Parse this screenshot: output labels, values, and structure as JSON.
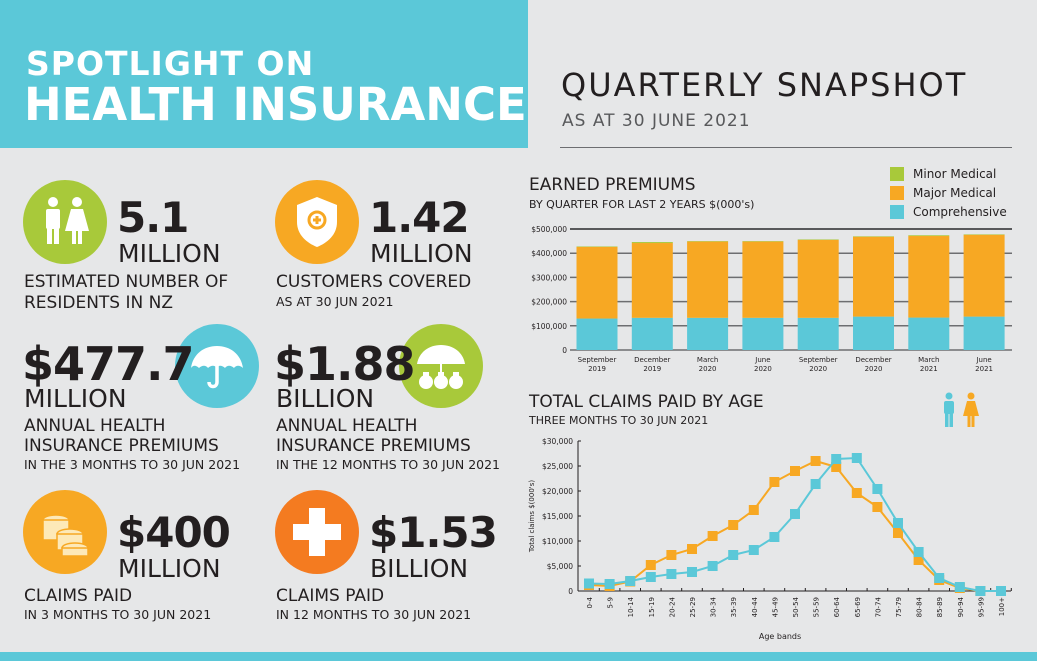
{
  "header": {
    "line1": "SPOTLIGHT ON",
    "line2": "HEALTH INSURANCE",
    "snapshot_title": "QUARTERLY SNAPSHOT",
    "snapshot_date": "AS AT 30 JUNE 2021"
  },
  "colors": {
    "teal": "#5bc8d8",
    "green": "#a8c93a",
    "orange": "#f7a823",
    "dark_orange": "#f47b20",
    "text": "#231f20",
    "background": "#e6e7e8"
  },
  "stats": [
    {
      "icon": "people-icon",
      "value": "5.1",
      "unit": "MILLION",
      "label1": "ESTIMATED NUMBER OF",
      "label2": "RESIDENTS IN NZ"
    },
    {
      "icon": "shield-plus-icon",
      "value": "1.42",
      "unit": "MILLION",
      "label1": "CUSTOMERS COVERED",
      "note": "AS AT 30 JUN 2021"
    },
    {
      "icon": "umbrella-icon",
      "value": "$477.7",
      "unit": "MILLION",
      "label1": "ANNUAL HEALTH",
      "label2": "INSURANCE PREMIUMS",
      "note": "IN THE 3 MONTHS TO 30 JUN 2021"
    },
    {
      "icon": "umbrella-money-bags-icon",
      "value": "$1.88",
      "unit": "BILLION",
      "label1": "ANNUAL HEALTH",
      "label2": "INSURANCE PREMIUMS",
      "note": "IN THE 12 MONTHS TO 30 JUN 2021"
    },
    {
      "icon": "coins-icon",
      "value": "$400",
      "unit": "MILLION",
      "label1": "CLAIMS PAID",
      "note": "IN 3 MONTHS TO 30 JUN 2021"
    },
    {
      "icon": "medical-cross-icon",
      "value": "$1.53",
      "unit": "BILLION",
      "label1": "CLAIMS PAID",
      "note": "IN 12 MONTHS TO 30 JUN 2021"
    }
  ],
  "chart_data": [
    {
      "type": "bar",
      "stacked": true,
      "title": "EARNED PREMIUMS",
      "subtitle": "BY QUARTER FOR LAST 2 YEARS $(000's)",
      "categories": [
        [
          "September",
          "2019"
        ],
        [
          "December",
          "2019"
        ],
        [
          "March",
          "2020"
        ],
        [
          "June",
          "2020"
        ],
        [
          "September",
          "2020"
        ],
        [
          "December",
          "2020"
        ],
        [
          "March",
          "2021"
        ],
        [
          "June",
          "2021"
        ]
      ],
      "ylim": [
        0,
        500000
      ],
      "yticks": [
        "0",
        "$100,000",
        "$200,000",
        "$300,000",
        "$400,000",
        "$500,000"
      ],
      "ytick_values": [
        0,
        100000,
        200000,
        300000,
        400000,
        500000
      ],
      "grid": true,
      "legend_position": "top-right",
      "series": [
        {
          "name": "Comprehensive",
          "color": "#5bc8d8",
          "values": [
            130000,
            133000,
            133000,
            133000,
            133000,
            138000,
            134000,
            138000
          ]
        },
        {
          "name": "Major Medical",
          "color": "#f7a823",
          "values": [
            296000,
            309000,
            315000,
            315000,
            322000,
            330000,
            337000,
            338000
          ]
        },
        {
          "name": "Minor Medical",
          "color": "#a8c93a",
          "values": [
            2000,
            4000,
            2000,
            2000,
            2000,
            2000,
            3000,
            2000
          ]
        }
      ],
      "legend_order": [
        "Minor Medical",
        "Major Medical",
        "Comprehensive"
      ]
    },
    {
      "type": "line",
      "title": "TOTAL CLAIMS PAID BY AGE",
      "subtitle": "THREE MONTHS TO 30 JUN 2021",
      "xlabel": "Age bands",
      "ylabel": "Total claims $(000's)",
      "categories": [
        "0-4",
        "5-9",
        "10-14",
        "15-19",
        "20-24",
        "25-29",
        "30-34",
        "35-39",
        "40-44",
        "45-49",
        "50-54",
        "55-59",
        "60-64",
        "65-69",
        "70-74",
        "75-79",
        "80-84",
        "85-89",
        "90-94",
        "95-99",
        "100+"
      ],
      "ylim": [
        0,
        30000
      ],
      "yticks": [
        "0",
        "$5,000",
        "$10,000",
        "$15,000",
        "$20,000",
        "$25,000",
        "$30,000"
      ],
      "ytick_values": [
        0,
        5000,
        10000,
        15000,
        20000,
        25000,
        30000
      ],
      "legend_icons": [
        {
          "icon": "male-icon",
          "color": "#5bc8d8"
        },
        {
          "icon": "female-icon",
          "color": "#f7a823"
        }
      ],
      "series": [
        {
          "gender": "female",
          "color": "#f7a823",
          "values": [
            1200,
            1000,
            1900,
            5200,
            7200,
            8400,
            11000,
            13200,
            16200,
            21800,
            24000,
            26000,
            24800,
            19600,
            16800,
            11600,
            6200,
            2200,
            600,
            0,
            0
          ]
        },
        {
          "gender": "male",
          "color": "#5bc8d8",
          "values": [
            1500,
            1400,
            2000,
            2800,
            3400,
            3800,
            5000,
            7200,
            8200,
            10800,
            15400,
            21400,
            26400,
            26600,
            20400,
            13600,
            7800,
            2600,
            800,
            0,
            0
          ]
        }
      ]
    }
  ]
}
